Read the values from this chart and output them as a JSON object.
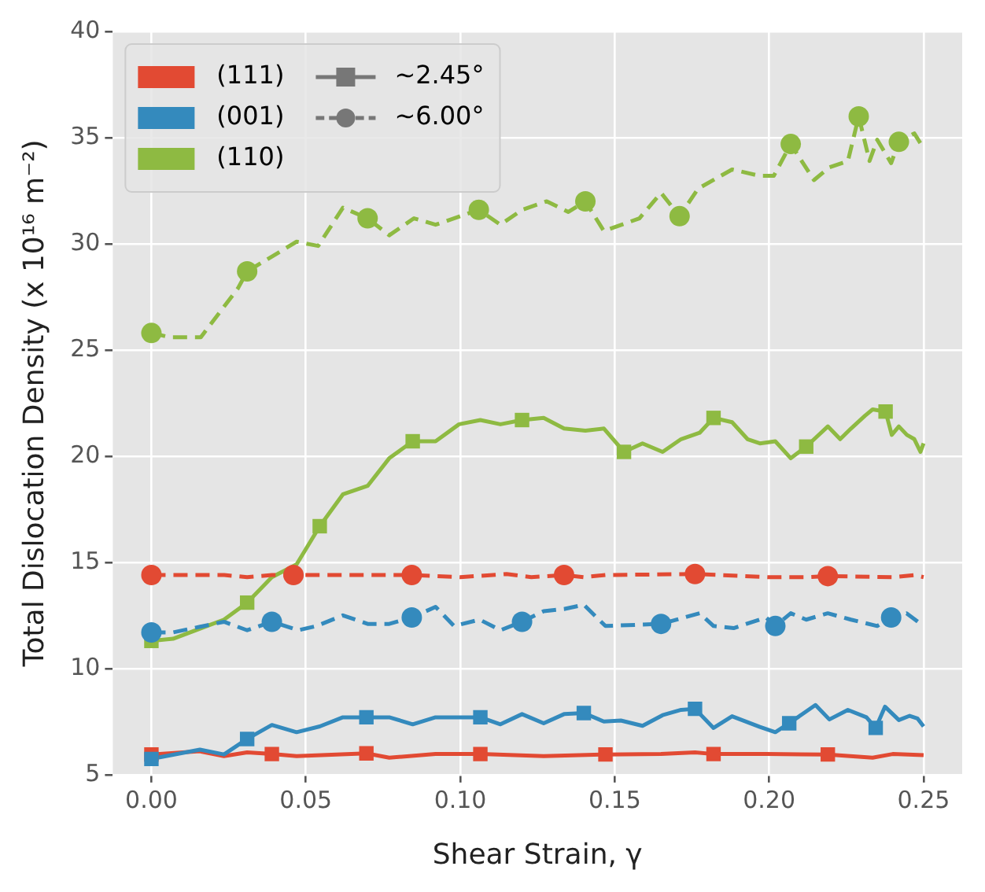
{
  "chart_data": {
    "type": "line",
    "xlabel": "Shear Strain, γ",
    "ylabel": "Total Dislocation Density (x 10¹⁶ m⁻²)",
    "xlim": [
      -0.0125,
      0.2625
    ],
    "ylim": [
      5,
      40
    ],
    "xticks": [
      {
        "value": 0,
        "label": "0.00"
      },
      {
        "value": 0.05,
        "label": "0.05"
      },
      {
        "value": 0.1,
        "label": "0.10"
      },
      {
        "value": 0.15,
        "label": "0.15"
      },
      {
        "value": 0.2,
        "label": "0.20"
      },
      {
        "value": 0.25,
        "label": "0.25"
      }
    ],
    "yticks": [
      5,
      10,
      15,
      20,
      25,
      30,
      35,
      40
    ],
    "grid": true,
    "legend": "top left",
    "series": [
      {
        "name": "(111)",
        "type": "line",
        "color": "#e24a33",
        "line_style": "solid",
        "marker": "none",
        "x": [
          0,
          0.0157,
          0.0235,
          0.031,
          0.039,
          0.047,
          0.0696,
          0.077,
          0.092,
          0.1065,
          0.127,
          0.147,
          0.165,
          0.176,
          0.182,
          0.199,
          0.219,
          0.2335,
          0.24,
          0.25
        ],
        "values": [
          5.95,
          6.1,
          5.87,
          6.05,
          5.97,
          5.87,
          6.0,
          5.8,
          5.97,
          5.97,
          5.87,
          5.95,
          5.97,
          6.05,
          5.97,
          5.97,
          5.95,
          5.8,
          5.97,
          5.92
        ]
      },
      {
        "name": "(001)",
        "type": "line",
        "color": "#348abd",
        "line_style": "solid",
        "marker": "none",
        "x": [
          0,
          0.0157,
          0.0235,
          0.031,
          0.039,
          0.047,
          0.0545,
          0.062,
          0.0696,
          0.077,
          0.0846,
          0.092,
          0.1065,
          0.113,
          0.12,
          0.127,
          0.1336,
          0.14,
          0.1465,
          0.152,
          0.159,
          0.1655,
          0.1715,
          0.176,
          0.182,
          0.188,
          0.197,
          0.202,
          0.2065,
          0.215,
          0.2195,
          0.2255,
          0.2315,
          0.2345,
          0.2375,
          0.242,
          0.2455,
          0.248,
          0.25
        ],
        "values": [
          5.74,
          6.18,
          5.95,
          6.68,
          7.34,
          7.0,
          7.27,
          7.7,
          7.7,
          7.7,
          7.37,
          7.7,
          7.7,
          7.37,
          7.85,
          7.42,
          7.85,
          7.9,
          7.5,
          7.55,
          7.3,
          7.8,
          8.05,
          8.1,
          7.2,
          7.75,
          7.25,
          7.0,
          7.42,
          8.28,
          7.6,
          8.05,
          7.7,
          7.2,
          8.2,
          7.57,
          7.77,
          7.65,
          7.27
        ]
      },
      {
        "name": "(110)",
        "type": "line",
        "color": "#8eba42",
        "line_style": "solid",
        "marker": "none",
        "x": [
          0,
          0.007,
          0.0235,
          0.031,
          0.039,
          0.047,
          0.0545,
          0.062,
          0.07,
          0.077,
          0.0846,
          0.092,
          0.0996,
          0.1065,
          0.113,
          0.12,
          0.127,
          0.1336,
          0.1405,
          0.1465,
          0.153,
          0.159,
          0.1655,
          0.1715,
          0.1775,
          0.182,
          0.188,
          0.193,
          0.197,
          0.202,
          0.207,
          0.212,
          0.219,
          0.223,
          0.2265,
          0.231,
          0.2335,
          0.2377,
          0.2397,
          0.242,
          0.2446,
          0.247,
          0.249,
          0.25
        ],
        "values": [
          11.3,
          11.4,
          12.3,
          13.1,
          14.3,
          14.9,
          16.7,
          18.2,
          18.6,
          19.9,
          20.7,
          20.7,
          21.5,
          21.7,
          21.5,
          21.7,
          21.8,
          21.3,
          21.2,
          21.3,
          20.2,
          20.6,
          20.2,
          20.8,
          21.1,
          21.8,
          21.6,
          20.8,
          20.6,
          20.7,
          19.9,
          20.45,
          21.4,
          20.8,
          21.3,
          21.9,
          22.2,
          22.1,
          21.0,
          21.4,
          21.0,
          20.8,
          20.2,
          20.6
        ]
      },
      {
        "type": "line",
        "color": "#e24a33",
        "line_style": "dashed",
        "marker": "none",
        "x": [
          0,
          0.0236,
          0.031,
          0.039,
          0.046,
          0.06,
          0.0843,
          0.1,
          0.115,
          0.123,
          0.1336,
          0.14,
          0.147,
          0.176,
          0.2,
          0.212,
          0.219,
          0.24,
          0.247,
          0.25
        ],
        "values": [
          14.4,
          14.4,
          14.3,
          14.4,
          14.4,
          14.4,
          14.4,
          14.3,
          14.45,
          14.3,
          14.4,
          14.3,
          14.4,
          14.45,
          14.3,
          14.3,
          14.35,
          14.3,
          14.4,
          14.3
        ]
      },
      {
        "type": "line",
        "color": "#348abd",
        "line_style": "dashed",
        "marker": "none",
        "x": [
          0,
          0.007,
          0.0235,
          0.031,
          0.039,
          0.0475,
          0.0535,
          0.062,
          0.07,
          0.077,
          0.0843,
          0.092,
          0.098,
          0.1063,
          0.113,
          0.12,
          0.127,
          0.1336,
          0.14,
          0.147,
          0.165,
          0.1775,
          0.182,
          0.1885,
          0.199,
          0.202,
          0.207,
          0.212,
          0.219,
          0.2265,
          0.235,
          0.2395,
          0.2445,
          0.25
        ],
        "values": [
          11.7,
          11.7,
          12.2,
          11.8,
          12.2,
          11.8,
          12.0,
          12.5,
          12.1,
          12.1,
          12.4,
          12.9,
          12.0,
          12.3,
          11.8,
          12.2,
          12.7,
          12.8,
          13.0,
          12.0,
          12.1,
          12.6,
          12.0,
          11.9,
          12.4,
          12.0,
          12.6,
          12.3,
          12.6,
          12.3,
          12.0,
          12.4,
          12.6,
          12.0
        ]
      },
      {
        "type": "line",
        "color": "#8eba42",
        "line_style": "dashed",
        "marker": "none",
        "x": [
          0,
          0.006,
          0.016,
          0.028,
          0.031,
          0.047,
          0.054,
          0.062,
          0.07,
          0.077,
          0.085,
          0.092,
          0.106,
          0.113,
          0.12,
          0.128,
          0.135,
          0.1405,
          0.1465,
          0.158,
          0.165,
          0.171,
          0.177,
          0.188,
          0.197,
          0.2015,
          0.207,
          0.2145,
          0.2195,
          0.2255,
          0.229,
          0.2325,
          0.235,
          0.2395,
          0.242,
          0.247,
          0.25
        ],
        "values": [
          25.8,
          25.6,
          25.6,
          27.9,
          28.7,
          30.1,
          29.9,
          31.7,
          31.2,
          30.4,
          31.2,
          30.9,
          31.6,
          30.9,
          31.6,
          32.0,
          31.5,
          32.0,
          30.6,
          31.2,
          32.4,
          31.3,
          32.6,
          33.5,
          33.2,
          33.2,
          34.7,
          33.0,
          33.6,
          33.9,
          36.0,
          33.9,
          34.9,
          33.8,
          34.8,
          35.2,
          34.5
        ]
      },
      {
        "type": "scatter",
        "color": "#e24a33",
        "marker": "square",
        "x": [
          0,
          0.039,
          0.0696,
          0.1065,
          0.147,
          0.182,
          0.219
        ],
        "values": [
          5.95,
          5.97,
          6.0,
          5.97,
          5.95,
          5.97,
          5.95
        ]
      },
      {
        "type": "scatter",
        "color": "#348abd",
        "marker": "square",
        "x": [
          0,
          0.031,
          0.0696,
          0.1065,
          0.14,
          0.176,
          0.2065,
          0.2345
        ],
        "values": [
          5.74,
          6.68,
          7.7,
          7.7,
          7.9,
          8.1,
          7.42,
          7.2
        ]
      },
      {
        "type": "scatter",
        "color": "#8eba42",
        "marker": "square",
        "x": [
          0,
          0.031,
          0.0545,
          0.0846,
          0.12,
          0.153,
          0.182,
          0.212,
          0.2377
        ],
        "values": [
          11.3,
          13.1,
          16.7,
          20.7,
          21.7,
          20.2,
          21.8,
          20.45,
          22.1
        ]
      },
      {
        "type": "scatter",
        "color": "#e24a33",
        "marker": "circle",
        "x": [
          0,
          0.046,
          0.0843,
          0.1336,
          0.176,
          0.219
        ],
        "values": [
          14.4,
          14.4,
          14.4,
          14.4,
          14.45,
          14.35
        ]
      },
      {
        "type": "scatter",
        "color": "#348abd",
        "marker": "circle",
        "x": [
          0,
          0.039,
          0.0843,
          0.12,
          0.165,
          0.202,
          0.2395
        ],
        "values": [
          11.7,
          12.2,
          12.4,
          12.2,
          12.1,
          12.0,
          12.4
        ]
      },
      {
        "type": "scatter",
        "color": "#8eba42",
        "marker": "circle",
        "x": [
          0,
          0.031,
          0.07,
          0.106,
          0.1405,
          0.171,
          0.207,
          0.229,
          0.242
        ],
        "values": [
          25.8,
          28.7,
          31.2,
          31.6,
          32.0,
          31.3,
          34.7,
          36.0,
          34.8
        ]
      },
      {
        "name": "~2.45°",
        "type": "line",
        "color": "#777777",
        "line_style": "solid",
        "marker": "square"
      },
      {
        "name": "~6.00°",
        "type": "line",
        "color": "#777777",
        "line_style": "dashed",
        "marker": "circle"
      }
    ]
  }
}
